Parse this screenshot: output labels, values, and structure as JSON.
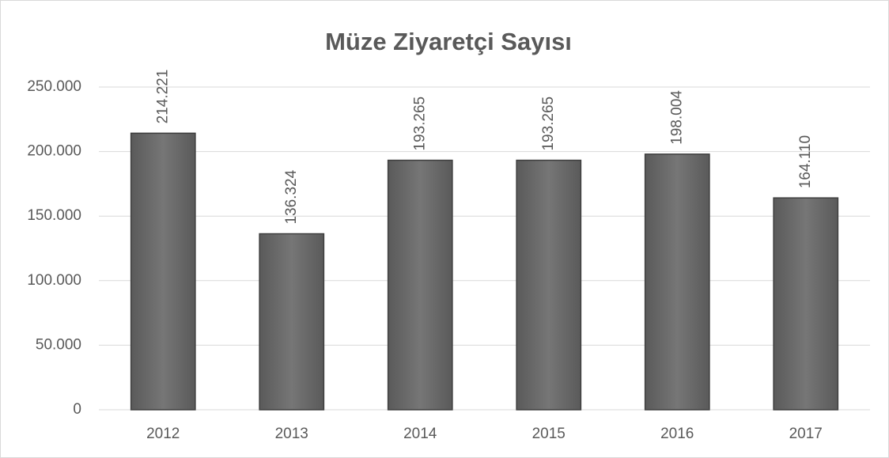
{
  "chart_data": {
    "type": "bar",
    "title": "Müze Ziyaretçi Sayısı",
    "categories": [
      "2012",
      "2013",
      "2014",
      "2015",
      "2016",
      "2017"
    ],
    "values": [
      214221,
      136324,
      193265,
      193265,
      198004,
      164110
    ],
    "value_labels": [
      "214.221",
      "136.324",
      "193.265",
      "193.265",
      "198.004",
      "164.110"
    ],
    "color": "#6b6b6b",
    "ylim": [
      0,
      250000
    ],
    "yticks": [
      0,
      {
        "value": 50000,
        "label": "50.000"
      },
      {
        "value": 100000,
        "label": "100.000"
      },
      {
        "value": 150000,
        "label": "150.000"
      },
      {
        "value": 200000,
        "label": "200.000"
      },
      {
        "value": 250000,
        "label": "250.000"
      }
    ],
    "grid": true
  }
}
